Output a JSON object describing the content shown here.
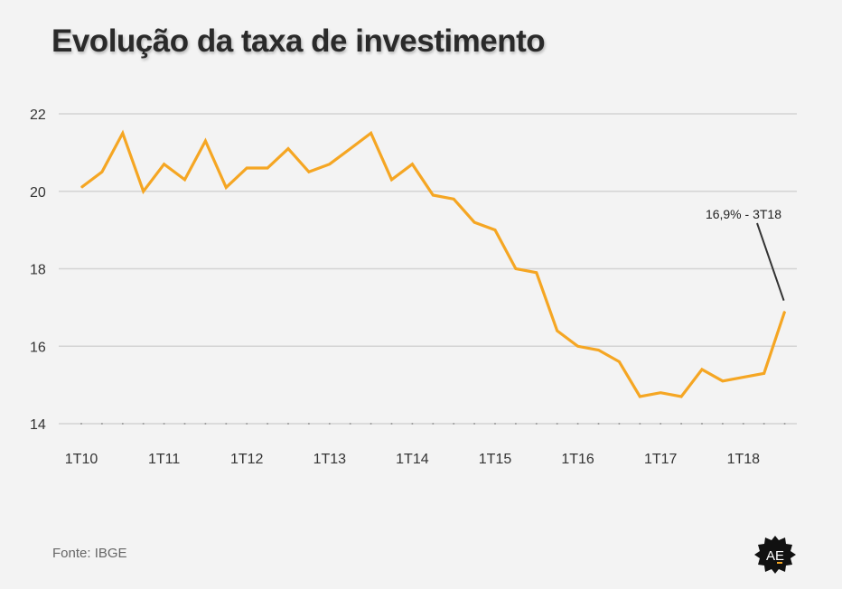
{
  "title": "Evolução da taxa de investimento",
  "source": "Fonte: IBGE",
  "logo_text": "AE",
  "colors": {
    "line": "#f5a623",
    "grid": "#d3d3d3",
    "background": "#f3f3f3"
  },
  "chart_data": {
    "type": "line",
    "title": "Evolução da taxa de investimento",
    "xlabel": "",
    "ylabel": "",
    "ylim": [
      14,
      22
    ],
    "yticks": [
      14,
      16,
      18,
      20,
      22
    ],
    "grid": true,
    "x_ticks": [
      "1T10",
      "1T11",
      "1T12",
      "1T13",
      "1T14",
      "1T15",
      "1T16",
      "1T17",
      "1T18"
    ],
    "x": [
      "1T10",
      "2T10",
      "3T10",
      "4T10",
      "1T11",
      "2T11",
      "3T11",
      "4T11",
      "1T12",
      "2T12",
      "3T12",
      "4T12",
      "1T13",
      "2T13",
      "3T13",
      "4T13",
      "1T14",
      "2T14",
      "3T14",
      "4T14",
      "1T15",
      "2T15",
      "3T15",
      "4T15",
      "1T16",
      "2T16",
      "3T16",
      "4T16",
      "1T17",
      "2T17",
      "3T17",
      "4T17",
      "1T18",
      "2T18",
      "3T18"
    ],
    "series": [
      {
        "values": [
          20.1,
          20.5,
          21.5,
          20.0,
          20.7,
          20.3,
          21.3,
          20.1,
          20.6,
          20.6,
          21.1,
          20.5,
          20.7,
          21.1,
          21.5,
          20.3,
          20.7,
          19.9,
          19.8,
          19.2,
          19.0,
          18.0,
          17.9,
          16.4,
          16.0,
          15.9,
          15.6,
          14.7,
          14.8,
          14.7,
          15.4,
          15.1,
          15.2,
          15.3,
          16.9
        ]
      }
    ],
    "annotation": {
      "text": "16,9% - 3T18",
      "x": "3T18",
      "y": 16.9
    }
  }
}
